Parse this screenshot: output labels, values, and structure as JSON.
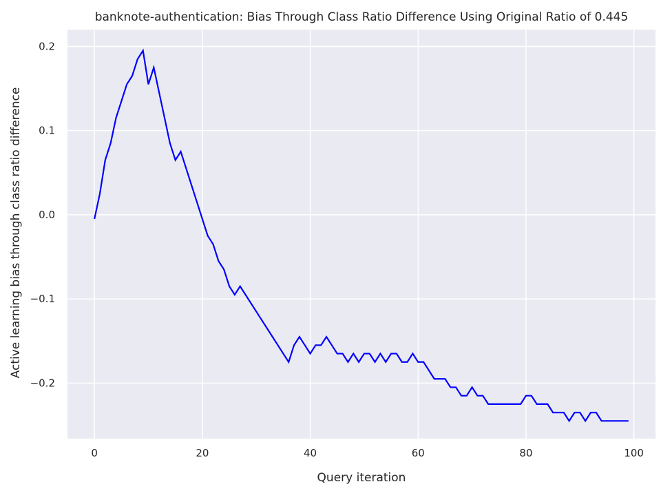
{
  "chart_data": {
    "type": "line",
    "title": "banknote-authentication: Bias Through Class Ratio Difference Using Original Ratio of 0.445",
    "xlabel": "Query iteration",
    "ylabel": "Active learning bias through class ratio difference",
    "xlim": [
      -5,
      104
    ],
    "ylim": [
      -0.266,
      0.22
    ],
    "xticks": [
      0,
      20,
      40,
      60,
      80,
      100
    ],
    "xtick_labels": [
      "0",
      "20",
      "40",
      "60",
      "80",
      "100"
    ],
    "yticks": [
      -0.2,
      -0.1,
      0.0,
      0.1,
      0.2
    ],
    "ytick_labels": [
      "−0.2",
      "−0.1",
      "0.0",
      "0.1",
      "0.2"
    ],
    "grid": true,
    "background_color": "#eaeaf2",
    "line_color": "#0000ff",
    "series": [
      {
        "x": [
          0,
          1,
          2,
          3,
          4,
          5,
          6,
          7,
          8,
          9,
          10,
          11,
          12,
          13,
          14,
          15,
          16,
          17,
          18,
          19,
          20,
          21,
          22,
          23,
          24,
          25,
          26,
          27,
          28,
          29,
          30,
          31,
          32,
          33,
          34,
          35,
          36,
          37,
          38,
          39,
          40,
          41,
          42,
          43,
          44,
          45,
          46,
          47,
          48,
          49,
          50,
          51,
          52,
          53,
          54,
          55,
          56,
          57,
          58,
          59,
          60,
          61,
          62,
          63,
          64,
          65,
          66,
          67,
          68,
          69,
          70,
          71,
          72,
          73,
          74,
          75,
          76,
          77,
          78,
          79,
          80,
          81,
          82,
          83,
          84,
          85,
          86,
          87,
          88,
          89,
          90,
          91,
          92,
          93,
          94,
          95,
          96,
          97,
          98,
          99
        ],
        "y": [
          -0.005,
          0.025,
          0.065,
          0.085,
          0.115,
          0.135,
          0.155,
          0.165,
          0.185,
          0.195,
          0.155,
          0.175,
          0.145,
          0.115,
          0.085,
          0.065,
          0.075,
          0.055,
          0.035,
          0.015,
          -0.005,
          -0.025,
          -0.035,
          -0.055,
          -0.065,
          -0.085,
          -0.095,
          -0.085,
          -0.095,
          -0.105,
          -0.115,
          -0.125,
          -0.135,
          -0.145,
          -0.155,
          -0.165,
          -0.175,
          -0.155,
          -0.145,
          -0.155,
          -0.165,
          -0.155,
          -0.155,
          -0.145,
          -0.155,
          -0.165,
          -0.165,
          -0.175,
          -0.165,
          -0.175,
          -0.165,
          -0.165,
          -0.175,
          -0.165,
          -0.175,
          -0.165,
          -0.165,
          -0.175,
          -0.175,
          -0.165,
          -0.175,
          -0.175,
          -0.185,
          -0.195,
          -0.195,
          -0.195,
          -0.205,
          -0.205,
          -0.215,
          -0.215,
          -0.205,
          -0.215,
          -0.215,
          -0.225,
          -0.225,
          -0.225,
          -0.225,
          -0.225,
          -0.225,
          -0.225,
          -0.215,
          -0.215,
          -0.225,
          -0.225,
          -0.225,
          -0.235,
          -0.235,
          -0.235,
          -0.245,
          -0.235,
          -0.235,
          -0.245,
          -0.235,
          -0.235,
          -0.245,
          -0.245,
          -0.245,
          -0.245,
          -0.245,
          -0.245
        ]
      }
    ]
  }
}
